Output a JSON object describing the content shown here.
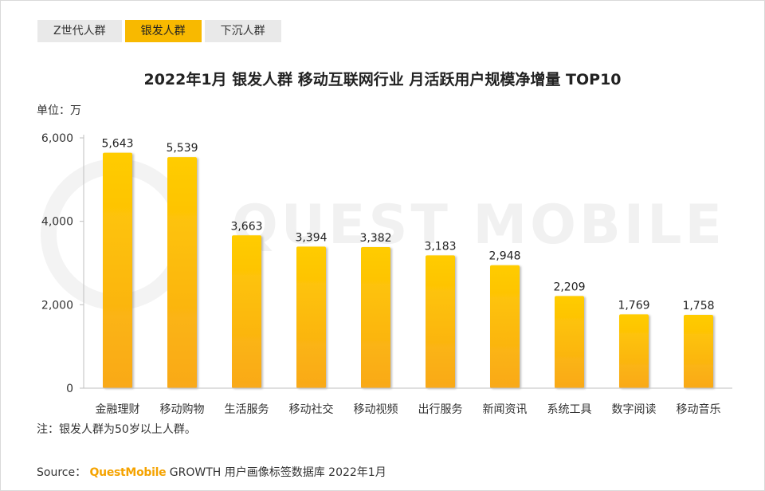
{
  "tabs": [
    {
      "label": "Z世代人群",
      "active": false
    },
    {
      "label": "银发人群",
      "active": true
    },
    {
      "label": "下沉人群",
      "active": false
    }
  ],
  "unit_label": "单位：万",
  "watermark": "QUEST MOBILE",
  "note": "注：银发人群为50岁以上人群。",
  "source": {
    "prefix": "Source：",
    "brand": "QuestMobile",
    "rest": "GROWTH 用户画像标签数据库 2022年1月"
  },
  "colors": {
    "bar_top": "#ffcc00",
    "bar_bottom": "#f9a91a",
    "tab_active": "#f8b900",
    "brand": "#f5a300"
  },
  "chart_data": {
    "type": "bar",
    "title": "2022年1月 银发人群 移动互联网行业 月活跃用户规模净增量 TOP10",
    "categories": [
      "金融理财",
      "移动购物",
      "生活服务",
      "移动社交",
      "移动视频",
      "出行服务",
      "新闻资讯",
      "系统工具",
      "数字阅读",
      "移动音乐"
    ],
    "values": [
      5643,
      5539,
      3663,
      3394,
      3382,
      3183,
      2948,
      2209,
      1769,
      1758
    ],
    "value_labels": [
      "5,643",
      "5,539",
      "3,663",
      "3,394",
      "3,382",
      "3,183",
      "2,948",
      "2,209",
      "1,769",
      "1,758"
    ],
    "yticks": [
      0,
      2000,
      4000,
      6000
    ],
    "ytick_labels": [
      "0",
      "2,000",
      "4,000",
      "6,000"
    ],
    "ylim": [
      0,
      6000
    ],
    "grid": false,
    "legend": "none"
  }
}
